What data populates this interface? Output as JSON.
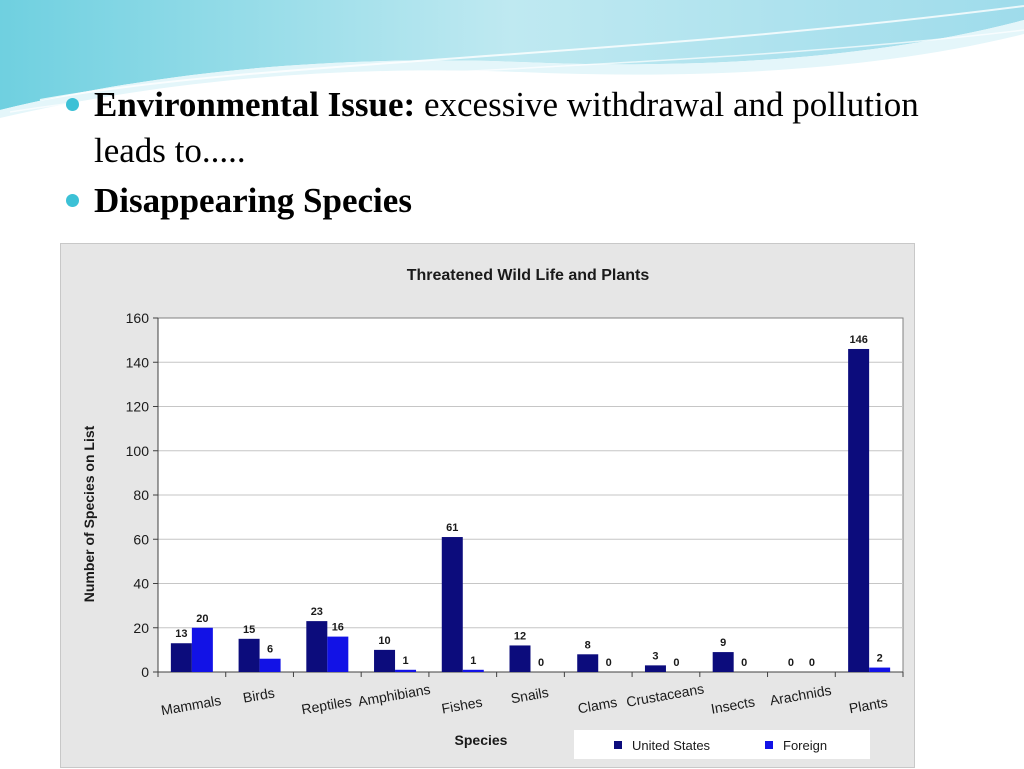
{
  "slide": {
    "bullets": [
      {
        "bold": "Environmental Issue:",
        "text": " excessive withdrawal and pollution leads to....."
      },
      {
        "bold": "Disappearing Species",
        "text": ""
      }
    ]
  },
  "colors": {
    "accent": "#3cc1d6",
    "united_states": "#0c0c7c",
    "foreign": "#1212e6",
    "plot_background": "#ffffff",
    "chart_background": "#e6e6e6"
  },
  "chart_data": {
    "type": "bar",
    "title": "Threatened Wild Life and Plants",
    "xlabel": "Species",
    "ylabel": "Number of Species on List",
    "ylim": [
      0,
      160
    ],
    "yticks": [
      0,
      20,
      40,
      60,
      80,
      100,
      120,
      140,
      160
    ],
    "grid": true,
    "legend_position": "bottom-right",
    "categories": [
      "Mammals",
      "Birds",
      "Reptiles",
      "Amphibians",
      "Fishes",
      "Snails",
      "Clams",
      "Crustaceans",
      "Insects",
      "Arachnids",
      "Plants"
    ],
    "series": [
      {
        "name": "United States",
        "values": [
          13,
          15,
          23,
          10,
          61,
          12,
          8,
          3,
          9,
          0,
          146
        ]
      },
      {
        "name": "Foreign",
        "values": [
          20,
          6,
          16,
          1,
          1,
          0,
          0,
          0,
          0,
          0,
          2
        ]
      }
    ]
  }
}
